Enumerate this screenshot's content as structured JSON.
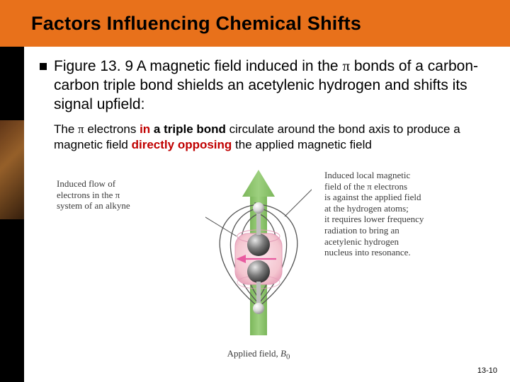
{
  "title": "Factors Influencing Chemical Shifts",
  "bullet": {
    "pre": "Figure 13. 9 A magnetic field induced in the ",
    "pi": "π",
    "post": " bonds of a carbon-carbon triple bond shields an acetylenic hydrogen and shifts its signal upfield:"
  },
  "sub": {
    "t1": "The ",
    "pi": "π",
    "t2": " electrons ",
    "t3_red_bold": "in",
    "t4": " ",
    "t5_bold": "a triple bond",
    "t6": " circulate around the bond axis to produce a magnetic field ",
    "t7_red_bold": "directly opposing",
    "t8": " the applied magnetic field"
  },
  "leftLabel": "Induced flow of\nelectrons in the π\nsystem of an alkyne",
  "rightLabel": "Induced local magnetic\nfield of the π electrons\nis against the applied field\nat the hydrogen atoms;\nit requires lower frequency\nradiation to bring an\nacetylenic hydrogen\nnucleus into resonance.",
  "appliedField": "Applied field, ",
  "appliedFieldSym": "B",
  "appliedFieldSub": "0",
  "slideNum": "13-10",
  "colors": {
    "titleBar": "#e8711b",
    "arrowGreen": "#8cc26a",
    "pink": "#f4c6d0",
    "pinkEdge": "#e07fa3",
    "sphere": "#6b6b6b",
    "sphereHi": "#cfcfcf",
    "hSphere": "#d8d8d8",
    "fieldLine": "#555555",
    "pinkArrow": "#e85aa0"
  }
}
